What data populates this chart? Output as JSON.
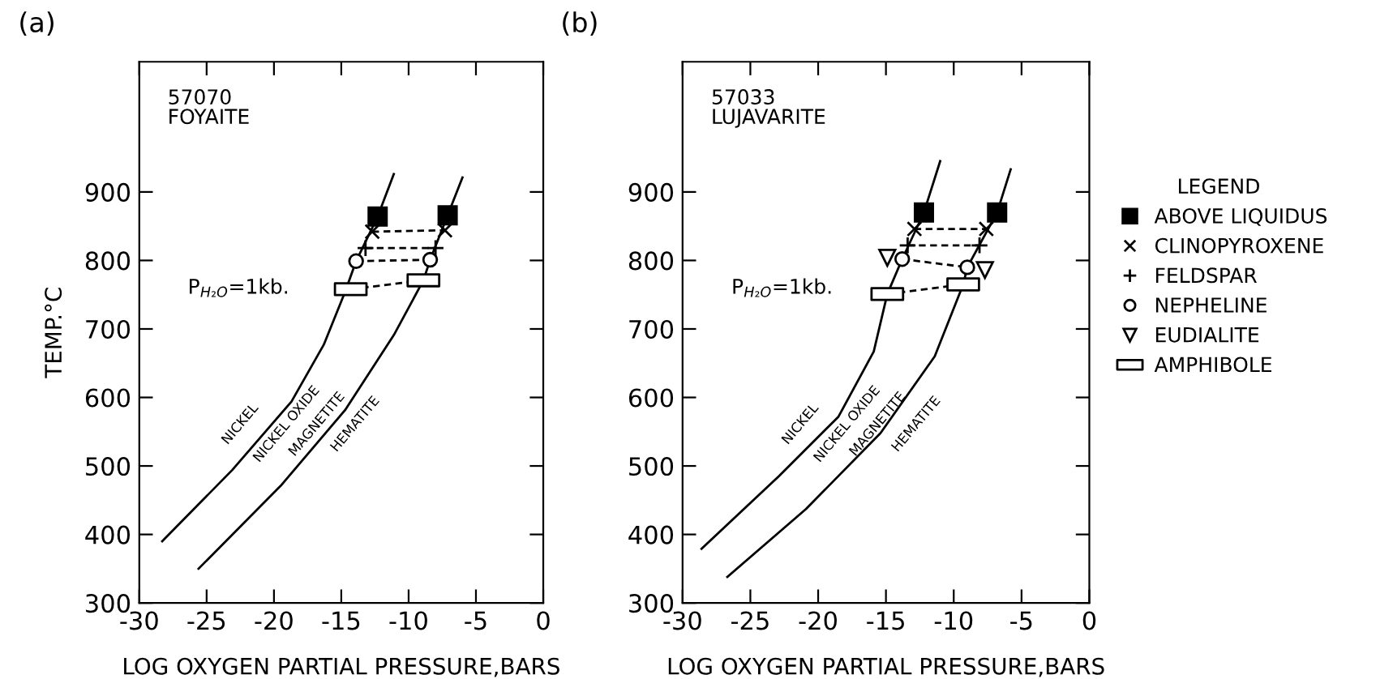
{
  "chart_data": [
    {
      "type": "line",
      "title": "(a)",
      "xlabel": "LOG OXYGEN PARTIAL PRESSURE,BARS",
      "ylabel": "TEMP.°C",
      "xlim": [
        -30,
        0
      ],
      "xticks": [
        -30,
        -25,
        -20,
        -15,
        -10,
        -5,
        0
      ],
      "ylim": [
        300,
        1090
      ],
      "yticks": [
        300,
        400,
        500,
        600,
        700,
        800,
        900
      ],
      "grid": false,
      "legend": false,
      "annotations": [
        "57070\nFOYAITE",
        "P$_{H₂O}$=1kb.",
        "NICKEL",
        "NICKEL OXIDE",
        "MAGNETITE",
        "HEMATITE"
      ],
      "series": [
        {
          "color": "#000000",
          "line_style": "solid",
          "x": [
            -28.3,
            -23.1,
            -18.7,
            -16.3,
            -14.7,
            -13.9,
            -12.3,
            -11.1
          ],
          "values": [
            390,
            494,
            594,
            677,
            755,
            799,
            864,
            926
          ]
        },
        {
          "color": "#000000",
          "line_style": "solid",
          "x": [
            -25.6,
            -19.5,
            -14.7,
            -11.1,
            -8.9,
            -8.4,
            -7.1,
            -6.0
          ],
          "values": [
            350,
            471,
            582,
            691,
            771,
            801,
            866,
            921
          ]
        },
        {
          "type": "line",
          "color": "#000000",
          "line_style": "dashed",
          "x": [
            -12.7,
            -7.3
          ],
          "values": [
            842,
            844
          ]
        },
        {
          "type": "line",
          "color": "#000000",
          "line_style": "dashed",
          "x": [
            -13.2,
            -8.0
          ],
          "values": [
            818,
            818
          ]
        },
        {
          "type": "line",
          "color": "#000000",
          "line_style": "dashed",
          "x": [
            -13.9,
            -8.4
          ],
          "values": [
            799,
            801
          ]
        },
        {
          "type": "line",
          "color": "#000000",
          "line_style": "dashed",
          "x": [
            -14.3,
            -8.9
          ],
          "values": [
            758,
            771
          ]
        },
        {
          "type": "scatter",
          "color": "#000000",
          "marker": "square",
          "x": [
            -12.3,
            -7.1
          ],
          "values": [
            864,
            866
          ]
        },
        {
          "type": "scatter",
          "color": "#000000",
          "marker": "cross",
          "x": [
            -12.7,
            -7.3
          ],
          "values": [
            842,
            844
          ]
        },
        {
          "type": "scatter",
          "color": "#000000",
          "marker": "plus",
          "x": [
            -13.2,
            -8.0
          ],
          "values": [
            818,
            818
          ]
        },
        {
          "type": "scatter",
          "color": "#000000",
          "marker": "circle",
          "x": [
            -13.9,
            -8.4
          ],
          "values": [
            799,
            801
          ]
        },
        {
          "type": "scatter",
          "color": "#000000",
          "marker": "rectangle",
          "x": [
            -14.3,
            -8.9
          ],
          "values": [
            758,
            771
          ]
        }
      ]
    },
    {
      "type": "line",
      "title": "(b)",
      "xlabel": "LOG OXYGEN PARTIAL PRESSURE,BARS",
      "xlim": [
        -30,
        0
      ],
      "xticks": [
        -30,
        -25,
        -20,
        -15,
        -10,
        -5,
        0
      ],
      "ylim": [
        300,
        1090
      ],
      "yticks": [
        300,
        400,
        500,
        600,
        700,
        800,
        900
      ],
      "grid": false,
      "legend": "right",
      "legend_title": "LEGEND",
      "annotations": [
        "57033\nLUJAVARITE",
        "P$_{H₂O}$=1kb.",
        "NICKEL",
        "NICKEL OXIDE",
        "MAGNETITE",
        "HEMATITE"
      ],
      "series": [
        {
          "color": "#000000",
          "line_style": "solid",
          "x": [
            -28.6,
            -22.9,
            -18.5,
            -15.9,
            -14.9,
            -13.8,
            -12.2,
            -11.0
          ],
          "values": [
            379,
            485,
            572,
            667,
            751,
            802,
            870,
            945
          ]
        },
        {
          "color": "#000000",
          "line_style": "solid",
          "x": [
            -26.7,
            -20.9,
            -15.4,
            -11.4,
            -9.3,
            -9.0,
            -6.8,
            -5.8
          ],
          "values": [
            338,
            437,
            548,
            660,
            765,
            790,
            870,
            933
          ]
        },
        {
          "type": "line",
          "color": "#000000",
          "line_style": "dashed",
          "x": [
            -12.9,
            -7.6
          ],
          "values": [
            846,
            846
          ]
        },
        {
          "type": "line",
          "color": "#000000",
          "line_style": "dashed",
          "x": [
            -13.4,
            -8.1
          ],
          "values": [
            822,
            822
          ]
        },
        {
          "type": "line",
          "color": "#000000",
          "line_style": "dashed",
          "x": [
            -13.8,
            -9.0
          ],
          "values": [
            802,
            790
          ]
        },
        {
          "type": "line",
          "color": "#000000",
          "line_style": "dashed",
          "x": [
            -14.9,
            -9.3
          ],
          "values": [
            751,
            765
          ]
        },
        {
          "type": "scatter",
          "name": "ABOVE LIQUIDUS",
          "color": "#000000",
          "marker": "square",
          "x": [
            -12.2,
            -6.8
          ],
          "values": [
            870,
            870
          ]
        },
        {
          "type": "scatter",
          "name": "CLINOPYROXENE",
          "color": "#000000",
          "marker": "cross",
          "x": [
            -12.9,
            -7.6
          ],
          "values": [
            846,
            846
          ]
        },
        {
          "type": "scatter",
          "name": "FELDSPAR",
          "color": "#000000",
          "marker": "plus",
          "x": [
            -13.4,
            -8.1
          ],
          "values": [
            822,
            822
          ]
        },
        {
          "type": "scatter",
          "name": "NEPHELINE",
          "color": "#000000",
          "marker": "circle",
          "x": [
            -13.8,
            -9.0
          ],
          "values": [
            802,
            790
          ]
        },
        {
          "type": "scatter",
          "name": "EUDIALITE",
          "color": "#000000",
          "marker": "triangle",
          "x": [
            -14.9,
            -7.7
          ],
          "values": [
            804,
            786
          ]
        },
        {
          "type": "scatter",
          "name": "AMPHIBOLE",
          "color": "#000000",
          "marker": "rectangle",
          "x": [
            -14.9,
            -9.3
          ],
          "values": [
            751,
            765
          ]
        }
      ]
    }
  ]
}
